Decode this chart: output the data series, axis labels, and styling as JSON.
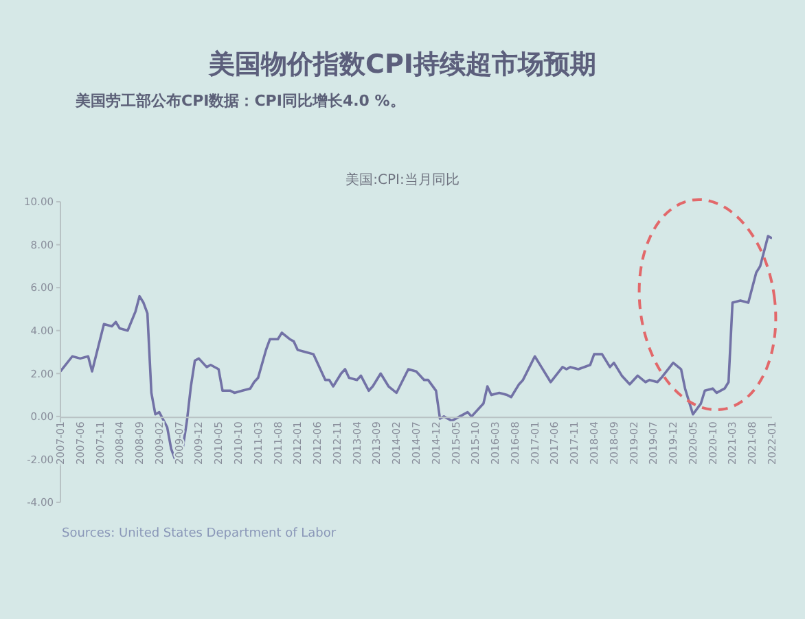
{
  "chart_data": {
    "type": "line",
    "title": "美国物价指数CPI持续超市场预期",
    "subtitle": "美国劳工部公布CPI数据：CPI同比增长4.0 %。",
    "annotations": [
      "美国:CPI:当月同比",
      "Sources: United States Department of Labor"
    ],
    "x": [
      "2007-01",
      "2007-04",
      "2007-06",
      "2007-08",
      "2007-09",
      "2007-12",
      "2008-02",
      "2008-03",
      "2008-04",
      "2008-06",
      "2008-08",
      "2008-09",
      "2008-10",
      "2008-11",
      "2008-12",
      "2009-01",
      "2009-02",
      "2009-04",
      "2009-05",
      "2009-06",
      "2009-07",
      "2009-08",
      "2009-09",
      "2009-10",
      "2009-11",
      "2009-12",
      "2010-02",
      "2010-03",
      "2010-05",
      "2010-06",
      "2010-08",
      "2010-09",
      "2010-11",
      "2011-01",
      "2011-02",
      "2011-03",
      "2011-05",
      "2011-06",
      "2011-08",
      "2011-09",
      "2011-11",
      "2011-12",
      "2012-01",
      "2012-03",
      "2012-05",
      "2012-06",
      "2012-08",
      "2012-09",
      "2012-10",
      "2012-12",
      "2013-01",
      "2013-02",
      "2013-04",
      "2013-05",
      "2013-07",
      "2013-08",
      "2013-10",
      "2013-12",
      "2014-02",
      "2014-05",
      "2014-07",
      "2014-09",
      "2014-10",
      "2014-12",
      "2015-01",
      "2015-02",
      "2015-04",
      "2015-06",
      "2015-08",
      "2015-09",
      "2015-11",
      "2015-12",
      "2016-01",
      "2016-02",
      "2016-04",
      "2016-06",
      "2016-07",
      "2016-09",
      "2016-10",
      "2017-01",
      "2017-02",
      "2017-05",
      "2017-08",
      "2017-09",
      "2017-10",
      "2017-12",
      "2018-03",
      "2018-04",
      "2018-06",
      "2018-08",
      "2018-09",
      "2018-11",
      "2019-01",
      "2019-03",
      "2019-05",
      "2019-06",
      "2019-08",
      "2019-09",
      "2019-12",
      "2020-02",
      "2020-03",
      "2020-05",
      "2020-07",
      "2020-08",
      "2020-10",
      "2020-11",
      "2021-01",
      "2021-02",
      "2021-03",
      "2021-05",
      "2021-07",
      "2021-09",
      "2021-10",
      "2021-12",
      "2022-01"
    ],
    "series": [
      {
        "color": "#7272a6",
        "values": [
          2.1,
          2.8,
          2.7,
          2.8,
          2.1,
          4.3,
          4.2,
          4.4,
          4.1,
          4.0,
          4.9,
          5.6,
          5.3,
          4.8,
          1.1,
          0.1,
          0.2,
          -0.5,
          -1.5,
          -2.0,
          -1.9,
          -1.4,
          -0.2,
          1.4,
          2.6,
          2.7,
          2.3,
          2.4,
          2.2,
          1.2,
          1.2,
          1.1,
          1.2,
          1.3,
          1.6,
          1.8,
          3.1,
          3.6,
          3.6,
          3.9,
          3.6,
          3.5,
          3.1,
          3.0,
          2.9,
          2.5,
          1.7,
          1.7,
          1.4,
          2.0,
          2.2,
          1.8,
          1.7,
          1.9,
          1.2,
          1.4,
          2.0,
          1.4,
          1.1,
          2.2,
          2.1,
          1.7,
          1.7,
          1.2,
          -0.1,
          0.0,
          -0.2,
          0.0,
          0.2,
          0.0,
          0.4,
          0.6,
          1.4,
          1.0,
          1.1,
          1.0,
          0.9,
          1.5,
          1.7,
          2.8,
          2.5,
          1.6,
          2.3,
          2.2,
          2.3,
          2.2,
          2.4,
          2.9,
          2.9,
          2.3,
          2.5,
          1.9,
          1.5,
          1.9,
          1.6,
          1.7,
          1.6,
          1.8,
          2.5,
          2.2,
          1.3,
          0.1,
          0.6,
          1.2,
          1.3,
          1.1,
          1.3,
          1.6,
          5.3,
          5.4,
          5.3,
          6.7,
          7.0,
          8.4,
          8.3
        ]
      }
    ],
    "xlim": [
      "2007-01",
      "2022-01"
    ],
    "xticks": [
      "2007-01",
      "2007-06",
      "2007-11",
      "2008-04",
      "2008-09",
      "2009-02",
      "2009-07",
      "2009-12",
      "2010-05",
      "2010-10",
      "2011-03",
      "2011-08",
      "2012-01",
      "2012-06",
      "2012-11",
      "2013-04",
      "2013-09",
      "2014-02",
      "2014-07",
      "2014-12",
      "2015-05",
      "2015-10",
      "2016-03",
      "2016-08",
      "2017-01",
      "2017-06",
      "2017-11",
      "2018-04",
      "2018-09",
      "2019-02",
      "2019-07",
      "2019-12",
      "2020-05",
      "2020-10",
      "2021-03",
      "2021-08",
      "2022-01"
    ],
    "ylim": [
      -4,
      10
    ],
    "yticks": [
      {
        "value": -4,
        "label": "-4.00"
      },
      {
        "value": -2,
        "label": "-2.00"
      },
      {
        "value": 0,
        "label": "0.00"
      },
      {
        "value": 2,
        "label": "2.00"
      },
      {
        "value": 4,
        "label": "4.00"
      },
      {
        "value": 6,
        "label": "6.00"
      },
      {
        "value": 8,
        "label": "8.00"
      },
      {
        "value": 10,
        "label": "10.00"
      }
    ],
    "grid": false,
    "legend": false,
    "marker": "none",
    "line_style": "solid"
  }
}
